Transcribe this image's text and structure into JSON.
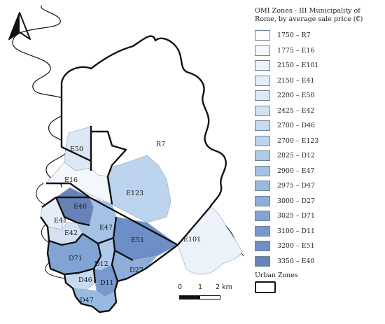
{
  "title": "OMI Zones - III Municipality of Rome, by average sale price (€)",
  "legend": [
    {
      "value": 1750,
      "zone": "R7",
      "label": "1750 – R7",
      "color": "#ffffff"
    },
    {
      "value": 1775,
      "zone": "E16",
      "label": "1775 – E16",
      "color": "#f4f8fd"
    },
    {
      "value": 2150,
      "zone": "E101",
      "label": "2150 – E101",
      "color": "#ecf2fa"
    },
    {
      "value": 2150,
      "zone": "E41",
      "label": "2150 – E41",
      "color": "#e4edf8"
    },
    {
      "value": 2200,
      "zone": "E50",
      "label": "2200 – E50",
      "color": "#dde8f6"
    },
    {
      "value": 2425,
      "zone": "E42",
      "label": "2425 – E42",
      "color": "#d3e2f3"
    },
    {
      "value": 2700,
      "zone": "D46",
      "label": "2700 – D46",
      "color": "#c7dbf0"
    },
    {
      "value": 2700,
      "zone": "E123",
      "label": "2700 – E123",
      "color": "#bcd4ed"
    },
    {
      "value": 2825,
      "zone": "D12",
      "label": "2825 – D12",
      "color": "#b0cbe9"
    },
    {
      "value": 2900,
      "zone": "E47",
      "label": "2900 – E47",
      "color": "#a4c2e5"
    },
    {
      "value": 2975,
      "zone": "D47",
      "label": "2975 – D47",
      "color": "#98b9e0"
    },
    {
      "value": 3000,
      "zone": "D27",
      "label": "3000 – D27",
      "color": "#8daedb"
    },
    {
      "value": 3025,
      "zone": "D71",
      "label": "3025 – D71",
      "color": "#82a4d5"
    },
    {
      "value": 3100,
      "zone": "D11",
      "label": "3100 – D11",
      "color": "#7799ce"
    },
    {
      "value": 3200,
      "zone": "E51",
      "label": "3200 – E51",
      "color": "#6d8ec6"
    },
    {
      "value": 3350,
      "zone": "E40",
      "label": "3350 – E40",
      "color": "#6782b9"
    }
  ],
  "urban_zones_label": "Urban Zones",
  "scale": {
    "label_0": "0",
    "label_1": "1",
    "label_2": "2 km"
  },
  "zones": [
    {
      "id": "R7",
      "label": "R7",
      "color": "#ffffff"
    },
    {
      "id": "E16",
      "label": "E16",
      "color": "#f4f8fd"
    },
    {
      "id": "E101",
      "label": "E101",
      "color": "#ecf2fa"
    },
    {
      "id": "E41",
      "label": "E41",
      "color": "#e4edf8"
    },
    {
      "id": "E50",
      "label": "E50",
      "color": "#dde8f6"
    },
    {
      "id": "E42",
      "label": "E42",
      "color": "#d3e2f3"
    },
    {
      "id": "D46",
      "label": "D46",
      "color": "#c7dbf0"
    },
    {
      "id": "E123",
      "label": "E123",
      "color": "#bcd4ed"
    },
    {
      "id": "D12",
      "label": "D12",
      "color": "#b0cbe9"
    },
    {
      "id": "E47",
      "label": "E47",
      "color": "#a4c2e5"
    },
    {
      "id": "D47",
      "label": "D47",
      "color": "#98b9e0"
    },
    {
      "id": "D27",
      "label": "D27",
      "color": "#8daedb"
    },
    {
      "id": "D71",
      "label": "D71",
      "color": "#82a4d5"
    },
    {
      "id": "D11",
      "label": "D11",
      "color": "#7799ce"
    },
    {
      "id": "E51",
      "label": "E51",
      "color": "#6d8ec6"
    },
    {
      "id": "E40",
      "label": "E40",
      "color": "#6782b9"
    }
  ],
  "icons": {
    "north_arrow": "north-arrow-icon"
  }
}
